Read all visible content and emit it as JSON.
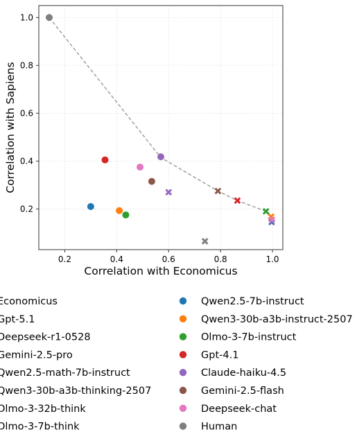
{
  "chart_data": {
    "type": "scatter",
    "xlabel": "Correlation with Economicus",
    "ylabel": "Correlation with Sapiens",
    "xlim": [
      0.1,
      1.04
    ],
    "ylim": [
      0.03,
      1.05
    ],
    "x_ticks": [
      "0.2",
      "0.4",
      "0.6",
      "0.8",
      "1.0"
    ],
    "y_ticks": [
      "0.2",
      "0.4",
      "0.6",
      "0.8",
      "1.0"
    ],
    "grid": true,
    "legend_placement": "below",
    "frontier": {
      "style": "dashed",
      "color": "#999999",
      "points": [
        [
          0.14,
          1.0
        ],
        [
          0.57,
          0.415
        ],
        [
          0.79,
          0.275
        ],
        [
          0.865,
          0.235
        ],
        [
          0.975,
          0.19
        ],
        [
          0.995,
          0.165
        ]
      ]
    },
    "series": [
      {
        "name": "Economicus",
        "marker": "x",
        "color": "#4c72b0",
        "points": [
          [
            0.997,
            0.145
          ]
        ]
      },
      {
        "name": "Gpt-5.1",
        "marker": "x",
        "color": "#ff7f0e",
        "points": [
          [
            0.995,
            0.168
          ]
        ]
      },
      {
        "name": "Deepseek-r1-0528",
        "marker": "x",
        "color": "#2ca02c",
        "points": [
          [
            0.975,
            0.19
          ]
        ]
      },
      {
        "name": "Gemini-2.5-pro",
        "marker": "x",
        "color": "#d62728",
        "points": [
          [
            0.865,
            0.235
          ]
        ]
      },
      {
        "name": "Qwen2.5-math-7b-instruct",
        "marker": "x",
        "color": "#9467bd",
        "points": [
          [
            0.6,
            0.27
          ]
        ]
      },
      {
        "name": "Qwen3-30b-a3b-thinking-2507",
        "marker": "x",
        "color": "#8c564b",
        "points": [
          [
            0.79,
            0.275
          ]
        ]
      },
      {
        "name": "Olmo-3-32b-think",
        "marker": "x",
        "color": "#e377c2",
        "points": [
          [
            0.998,
            0.155
          ]
        ]
      },
      {
        "name": "Olmo-3-7b-think",
        "marker": "x",
        "color": "#7f7f7f",
        "points": [
          [
            0.74,
            0.065
          ]
        ]
      },
      {
        "name": "Qwen2.5-7b-instruct",
        "marker": "o",
        "color": "#1f77b4",
        "points": [
          [
            0.3,
            0.21
          ]
        ]
      },
      {
        "name": "Qwen3-30b-a3b-instruct-2507",
        "marker": "o",
        "color": "#ff7f0e",
        "points": [
          [
            0.41,
            0.193
          ]
        ]
      },
      {
        "name": "Olmo-3-7b-instruct",
        "marker": "o",
        "color": "#2ca02c",
        "points": [
          [
            0.435,
            0.175
          ]
        ]
      },
      {
        "name": "Gpt-4.1",
        "marker": "o",
        "color": "#d62728",
        "points": [
          [
            0.355,
            0.405
          ]
        ]
      },
      {
        "name": "Claude-haiku-4.5",
        "marker": "o",
        "color": "#9467bd",
        "points": [
          [
            0.57,
            0.418
          ]
        ]
      },
      {
        "name": "Gemini-2.5-flash",
        "marker": "o",
        "color": "#8c564b",
        "points": [
          [
            0.535,
            0.315
          ]
        ]
      },
      {
        "name": "Deepseek-chat",
        "marker": "o",
        "color": "#e377c2",
        "points": [
          [
            0.49,
            0.375
          ]
        ]
      },
      {
        "name": "Human",
        "marker": "o",
        "color": "#7f7f7f",
        "points": [
          [
            0.14,
            1.0
          ]
        ]
      }
    ]
  }
}
